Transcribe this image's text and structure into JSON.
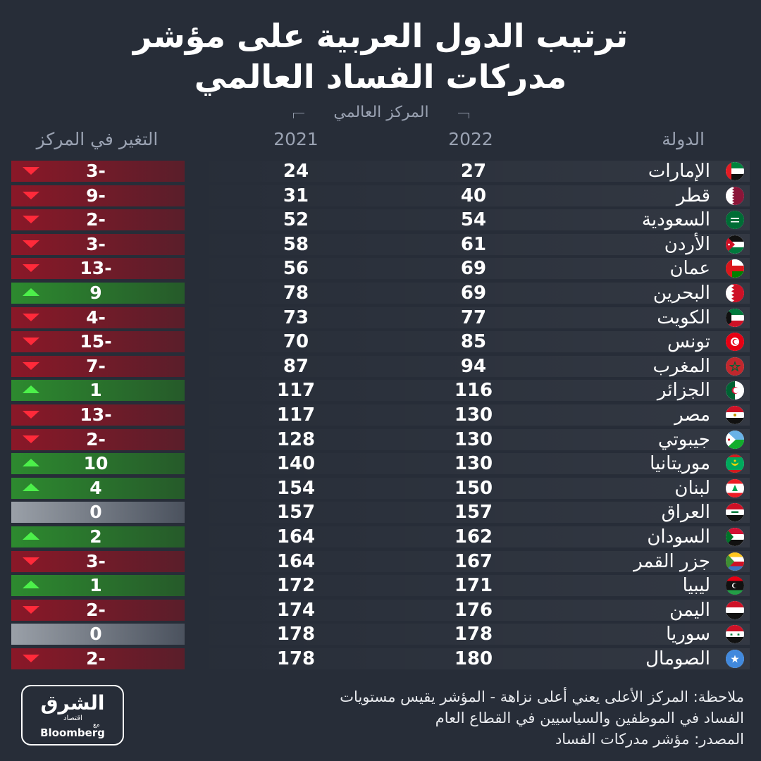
{
  "title": {
    "line1": "ترتيب الدول العربية على مؤشر",
    "line2": "مدركات الفساد العالمي"
  },
  "headers": {
    "global_rank": "المركز العالمي",
    "country": "الدولة",
    "y2022": "2022",
    "y2021": "2021",
    "change": "التغير في المركز"
  },
  "colors": {
    "background": "#272d38",
    "decline": "#8a1828",
    "improve": "#2d8a2f",
    "unchanged": "#9aa0a8",
    "arrow_down": "#ff2a3a",
    "arrow_up": "#4cf04a"
  },
  "chart_data": {
    "type": "table",
    "columns": [
      "الدولة",
      "2022",
      "2021",
      "التغير في المركز"
    ],
    "rows": [
      {
        "country": "الإمارات",
        "y2022": 27,
        "y2021": 24,
        "change": "3-",
        "dir": "down",
        "flag": "uae-flag"
      },
      {
        "country": "قطر",
        "y2022": 40,
        "y2021": 31,
        "change": "9-",
        "dir": "down",
        "flag": "qatar-flag"
      },
      {
        "country": "السعودية",
        "y2022": 54,
        "y2021": 52,
        "change": "2-",
        "dir": "down",
        "flag": "saudi-flag"
      },
      {
        "country": "الأردن",
        "y2022": 61,
        "y2021": 58,
        "change": "3-",
        "dir": "down",
        "flag": "jordan-flag"
      },
      {
        "country": "عمان",
        "y2022": 69,
        "y2021": 56,
        "change": "13-",
        "dir": "down",
        "flag": "oman-flag"
      },
      {
        "country": "البحرين",
        "y2022": 69,
        "y2021": 78,
        "change": "9",
        "dir": "up",
        "flag": "bahrain-flag"
      },
      {
        "country": "الكويت",
        "y2022": 77,
        "y2021": 73,
        "change": "4-",
        "dir": "down",
        "flag": "kuwait-flag"
      },
      {
        "country": "تونس",
        "y2022": 85,
        "y2021": 70,
        "change": "15-",
        "dir": "down",
        "flag": "tunisia-flag"
      },
      {
        "country": "المغرب",
        "y2022": 94,
        "y2021": 87,
        "change": "7-",
        "dir": "down",
        "flag": "morocco-flag"
      },
      {
        "country": "الجزائر",
        "y2022": 116,
        "y2021": 117,
        "change": "1",
        "dir": "up",
        "flag": "algeria-flag"
      },
      {
        "country": "مصر",
        "y2022": 130,
        "y2021": 117,
        "change": "13-",
        "dir": "down",
        "flag": "egypt-flag"
      },
      {
        "country": "جيبوتي",
        "y2022": 130,
        "y2021": 128,
        "change": "2-",
        "dir": "down",
        "flag": "djibouti-flag"
      },
      {
        "country": "موريتانيا",
        "y2022": 130,
        "y2021": 140,
        "change": "10",
        "dir": "up",
        "flag": "mauritania-flag"
      },
      {
        "country": "لبنان",
        "y2022": 150,
        "y2021": 154,
        "change": "4",
        "dir": "up",
        "flag": "lebanon-flag"
      },
      {
        "country": "العراق",
        "y2022": 157,
        "y2021": 157,
        "change": "0",
        "dir": "same",
        "flag": "iraq-flag"
      },
      {
        "country": "السودان",
        "y2022": 162,
        "y2021": 164,
        "change": "2",
        "dir": "up",
        "flag": "sudan-flag"
      },
      {
        "country": "جزر القمر",
        "y2022": 167,
        "y2021": 164,
        "change": "3-",
        "dir": "down",
        "flag": "comoros-flag"
      },
      {
        "country": "ليبيا",
        "y2022": 171,
        "y2021": 172,
        "change": "1",
        "dir": "up",
        "flag": "libya-flag"
      },
      {
        "country": "اليمن",
        "y2022": 176,
        "y2021": 174,
        "change": "2-",
        "dir": "down",
        "flag": "yemen-flag"
      },
      {
        "country": "سوريا",
        "y2022": 178,
        "y2021": 178,
        "change": "0",
        "dir": "same",
        "flag": "syria-flag"
      },
      {
        "country": "الصومال",
        "y2022": 180,
        "y2021": 178,
        "change": "2-",
        "dir": "down",
        "flag": "somalia-flag"
      }
    ]
  },
  "note": {
    "line1": "ملاحظة: المركز الأعلى يعني أعلى نزاهة - المؤشر يقيس مستويات",
    "line2": "الفساد في الموظفين والسياسيين في القطاع العام",
    "line3": "المصدر: مؤشر مدركات الفساد"
  },
  "logo": {
    "arabic": "الشرق",
    "sub": "اقتصاد",
    "with": "مع",
    "english": "Bloomberg"
  }
}
